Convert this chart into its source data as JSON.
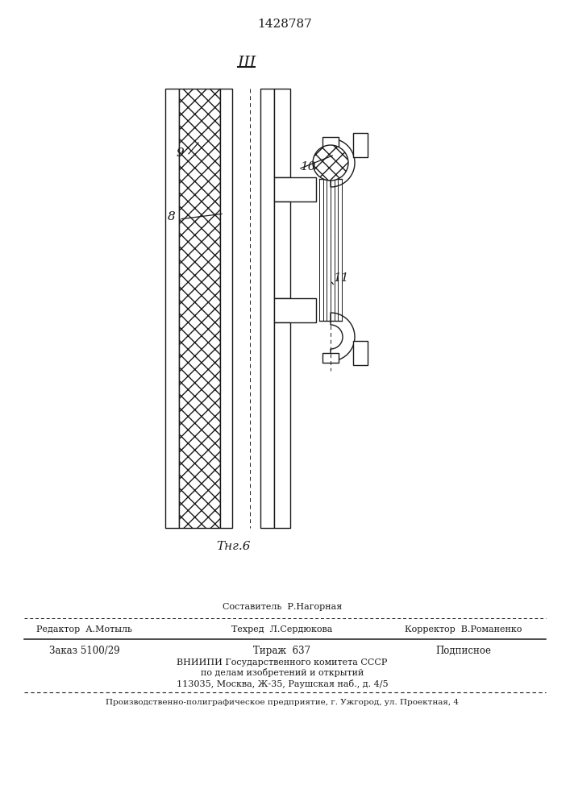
{
  "patent_number": "1428787",
  "fig_label": "Τнг.6",
  "arrow_label": "Ш",
  "label_9": "9",
  "label_10": "10",
  "label_8": "8",
  "label_11": "11",
  "editor_line": "Редактор  А.Мотыль",
  "compiler_line": "Составитель  Р.Нагорная",
  "techred_line": "Техред  Л.Сердюкова",
  "corrector_line": "Корректор  В.Романенко",
  "order_line": "Заказ 5100/29",
  "tirazh_line": "Тираж  637",
  "podpisnoe_line": "Подписное",
  "vnipi_line1": "ВНИИПИ Государственного комитета СССР",
  "vnipi_line2": "по делам изобретений и открытий",
  "vnipi_line3": "113035, Москва, Ж-35, Раушская наб., д. 4/5",
  "production_line": "Производственно-полиграфическое предприятие, г. Ужгород, ул. Проектная, 4",
  "bg_color": "#ffffff",
  "line_color": "#1a1a1a"
}
